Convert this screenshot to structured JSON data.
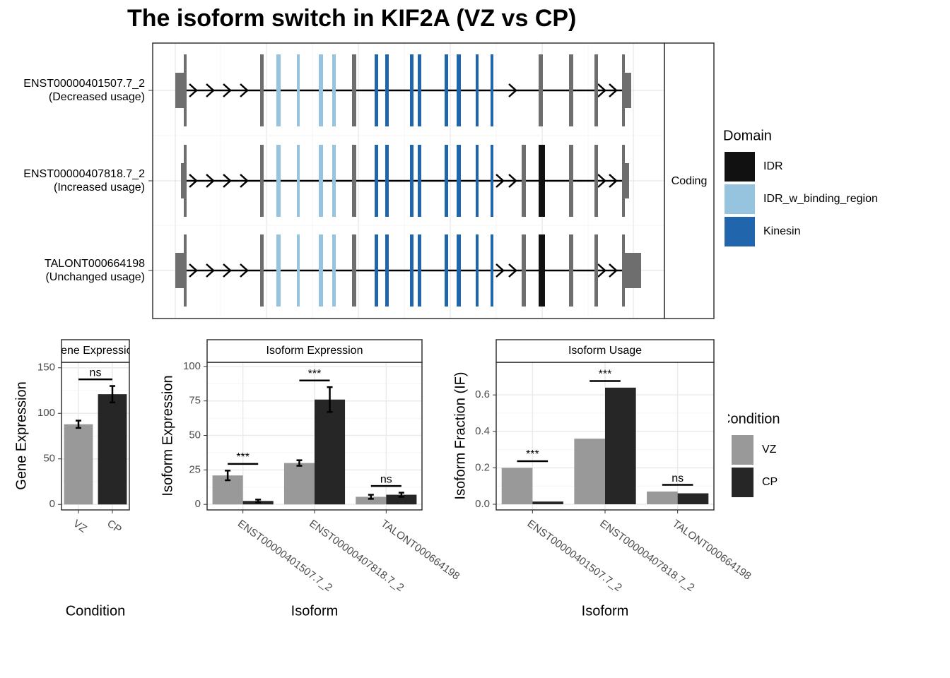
{
  "title": "The isoform switch in KIF2A (VZ vs CP)",
  "transcript_plot": {
    "isoforms": [
      {
        "name": "ENST00000401507.7_2",
        "usage": "(Decreased usage)"
      },
      {
        "name": "ENST00000407818.7_2",
        "usage": "(Increased usage)"
      },
      {
        "name": "TALONT000664198",
        "usage": "(Unchanged usage)"
      }
    ],
    "facet": "Coding",
    "legend_title": "Domain",
    "domains": [
      {
        "name": "IDR",
        "color": "#111111"
      },
      {
        "name": "IDR_w_binding_region",
        "color": "#96c3dd"
      },
      {
        "name": "Kinesin",
        "color": "#2166ac"
      }
    ]
  },
  "condition_legend": {
    "title": "Condition"
  },
  "chart_data": [
    {
      "type": "bar",
      "strip_title": "Gene Expression",
      "ylabel": "Gene Expression",
      "xlabel": "Condition",
      "categories": [
        "VZ",
        "CP"
      ],
      "values": [
        88,
        121
      ],
      "errors": [
        4,
        9
      ],
      "colors": [
        "#999999",
        "#262626"
      ],
      "ylim": [
        -6,
        156
      ],
      "yticks": [
        0,
        50,
        100,
        150
      ],
      "grid": true,
      "annotations": [
        {
          "text": "ns",
          "from": 0,
          "to": 1
        }
      ]
    },
    {
      "type": "bar",
      "strip_title": "Isoform Expression",
      "ylabel": "Isoform Expression",
      "xlabel": "Isoform",
      "categories": [
        "ENST00000401507.7_2",
        "ENST00000407818.7_2",
        "TALONT000664198"
      ],
      "series": [
        {
          "name": "VZ",
          "color": "#999999",
          "values": [
            21,
            30,
            5.5
          ],
          "errors": [
            3.5,
            2,
            1.5
          ]
        },
        {
          "name": "CP",
          "color": "#262626",
          "values": [
            2.5,
            76,
            7
          ],
          "errors": [
            1,
            9,
            1.5
          ]
        }
      ],
      "ylim": [
        -4,
        103
      ],
      "yticks": [
        0,
        25,
        50,
        75,
        100
      ],
      "grid": true,
      "annotations": [
        {
          "text": "***",
          "category": 0
        },
        {
          "text": "***",
          "category": 1
        },
        {
          "text": "ns",
          "category": 2
        }
      ]
    },
    {
      "type": "bar",
      "strip_title": "Isoform Usage",
      "ylabel": "Isoform Fraction (IF)",
      "xlabel": "Isoform",
      "categories": [
        "ENST00000401507.7_2",
        "ENST00000407818.7_2",
        "TALONT000664198"
      ],
      "series": [
        {
          "name": "VZ",
          "color": "#999999",
          "values": [
            0.2,
            0.36,
            0.07
          ]
        },
        {
          "name": "CP",
          "color": "#262626",
          "values": [
            0.015,
            0.64,
            0.06
          ]
        }
      ],
      "ylim": [
        -0.031,
        0.779
      ],
      "yticks": [
        {
          "value": 0,
          "label": "0.0"
        },
        0.2,
        0.4,
        0.6
      ],
      "grid": true,
      "annotations": [
        {
          "text": "***",
          "category": 0
        },
        {
          "text": "***",
          "category": 1
        },
        {
          "text": "ns",
          "category": 2
        }
      ]
    }
  ]
}
